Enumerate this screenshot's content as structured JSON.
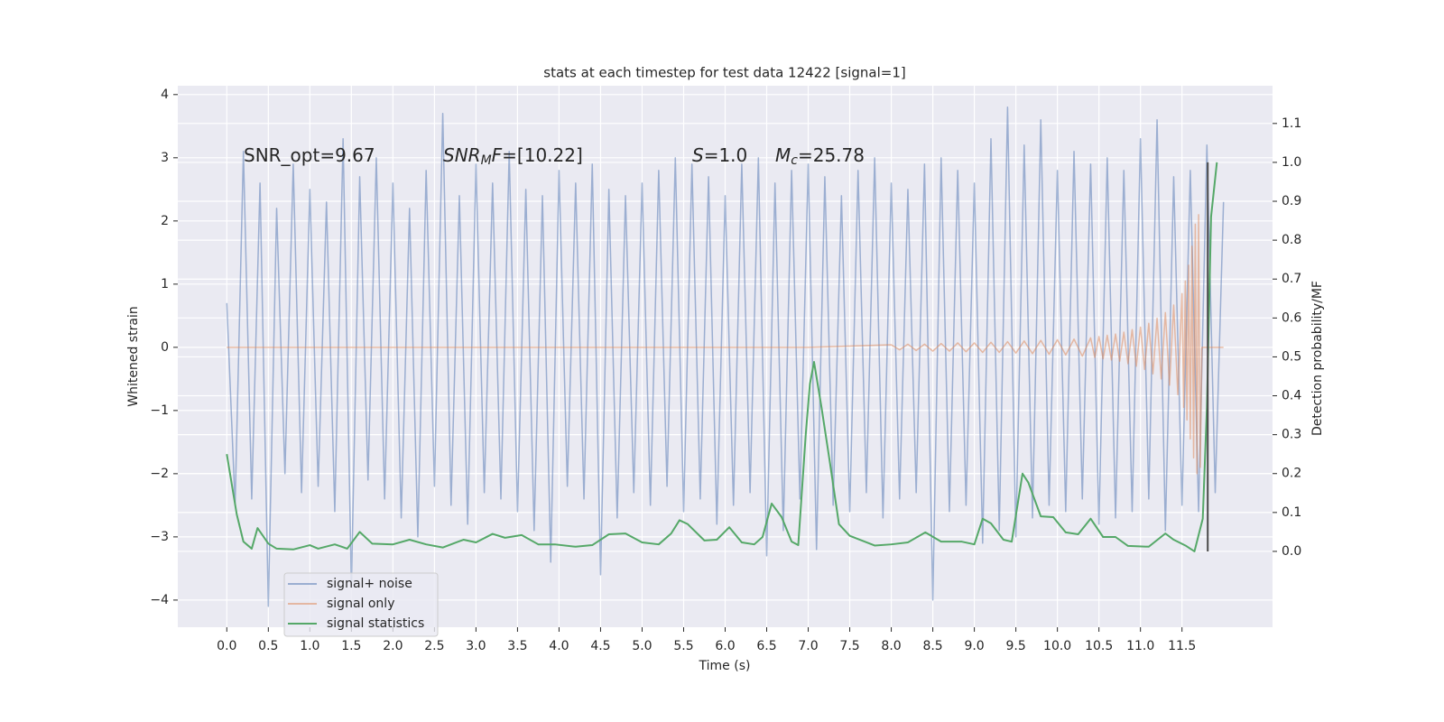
{
  "chart_data": {
    "type": "line",
    "title": "stats at each timestep for test data 12422 [signal=1]",
    "xlabel": "Time (s)",
    "ylabel": "Whitened strain",
    "y2label": "Detection probability/MF",
    "xlim": [
      -0.59,
      12.59
    ],
    "ylim": [
      -4.43,
      4.14
    ],
    "y2lim": [
      -0.195,
      1.197
    ],
    "xticks": [
      {
        "value": 0,
        "label": "0.0"
      },
      0.5,
      {
        "value": 1,
        "label": "1.0"
      },
      1.5,
      {
        "value": 2,
        "label": "2.0"
      },
      2.5,
      {
        "value": 3,
        "label": "3.0"
      },
      3.5,
      {
        "value": 4,
        "label": "4.0"
      },
      4.5,
      {
        "value": 5,
        "label": "5.0"
      },
      5.5,
      {
        "value": 6,
        "label": "6.0"
      },
      6.5,
      {
        "value": 7,
        "label": "7.0"
      },
      7.5,
      {
        "value": 8,
        "label": "8.0"
      },
      8.5,
      {
        "value": 9,
        "label": "9.0"
      },
      9.5,
      {
        "value": 10,
        "label": "10.0"
      },
      10.5,
      {
        "value": 11,
        "label": "11.0"
      },
      11.5
    ],
    "yticks": [
      {
        "value": -4,
        "label": "−4"
      },
      {
        "value": -3,
        "label": "−3"
      },
      {
        "value": -2,
        "label": "−2"
      },
      {
        "value": -1,
        "label": "−1"
      },
      0,
      1,
      2,
      3,
      4
    ],
    "y2ticks": [
      {
        "value": 0,
        "label": "0.0"
      },
      0.1,
      0.2,
      0.3,
      0.4,
      0.5,
      0.6,
      0.7,
      0.8,
      0.9,
      {
        "value": 1,
        "label": "1.0"
      },
      1.1
    ],
    "grid": true,
    "legend": "lower left",
    "annotations": [
      [
        {
          "text": "SNR_opt=9.67",
          "style": "normal"
        }
      ],
      [
        {
          "text": "SNR",
          "style": "italic"
        },
        {
          "text": "M",
          "style": "sub"
        },
        {
          "text": "F",
          "style": "italic"
        },
        {
          "text": "=[10.22]",
          "style": "normal"
        }
      ],
      [
        {
          "text": "S",
          "style": "italic"
        },
        {
          "text": "=1.0",
          "style": "normal"
        }
      ],
      [
        {
          "text": "M",
          "style": "italic"
        },
        {
          "text": "c",
          "style": "sub"
        },
        {
          "text": "=25.78",
          "style": "normal"
        }
      ]
    ],
    "vline": {
      "x": 11.81,
      "ymin": 0,
      "ymax": 1.0,
      "color": "#4a4a4a",
      "axis": "y2"
    },
    "series": [
      {
        "name": "signal+ noise",
        "color": "#4C72B0",
        "opacity": 0.5,
        "x": [
          0,
          0.1,
          0.2,
          0.3,
          0.4,
          0.5,
          0.6,
          0.7,
          0.8,
          0.9,
          1,
          1.1,
          1.2,
          1.3,
          1.4,
          1.5,
          1.6,
          1.7,
          1.8,
          1.9,
          2,
          2.1,
          2.2,
          2.3,
          2.4,
          2.5,
          2.6,
          2.7,
          2.8,
          2.9,
          3,
          3.1,
          3.2,
          3.3,
          3.4,
          3.5,
          3.6,
          3.7,
          3.8,
          3.9,
          4,
          4.1,
          4.2,
          4.3,
          4.4,
          4.5,
          4.6,
          4.7,
          4.8,
          4.9,
          5,
          5.1,
          5.2,
          5.3,
          5.4,
          5.5,
          5.6,
          5.7,
          5.8,
          5.9,
          6,
          6.1,
          6.2,
          6.3,
          6.4,
          6.5,
          6.6,
          6.7,
          6.8,
          6.9,
          7,
          7.1,
          7.2,
          7.3,
          7.4,
          7.5,
          7.6,
          7.7,
          7.8,
          7.9,
          8,
          8.1,
          8.2,
          8.3,
          8.4,
          8.5,
          8.6,
          8.7,
          8.8,
          8.9,
          9,
          9.1,
          9.2,
          9.3,
          9.4,
          9.5,
          9.6,
          9.7,
          9.8,
          9.9,
          10,
          10.1,
          10.2,
          10.3,
          10.4,
          10.5,
          10.6,
          10.7,
          10.8,
          10.9,
          11,
          11.1,
          11.2,
          11.3,
          11.4,
          11.5,
          11.6,
          11.7,
          11.8,
          11.9,
          12
        ],
        "values": [
          0.7,
          -2.5,
          3.1,
          -2.4,
          2.6,
          -4.1,
          2.2,
          -2.0,
          2.9,
          -2.3,
          2.5,
          -2.2,
          2.3,
          -2.6,
          3.3,
          -3.8,
          2.7,
          -2.1,
          3.0,
          -2.4,
          2.6,
          -2.7,
          2.2,
          -3.0,
          2.8,
          -2.2,
          3.7,
          -2.5,
          2.4,
          -2.8,
          2.9,
          -2.3,
          2.6,
          -2.4,
          3.1,
          -2.6,
          2.5,
          -2.9,
          2.4,
          -3.4,
          2.8,
          -2.2,
          2.6,
          -2.4,
          2.9,
          -3.6,
          2.5,
          -2.7,
          2.4,
          -2.3,
          2.6,
          -2.5,
          2.8,
          -2.2,
          3.0,
          -2.6,
          2.9,
          -2.4,
          2.7,
          -2.8,
          2.4,
          -2.5,
          2.9,
          -2.3,
          3.0,
          -3.3,
          2.6,
          -2.9,
          2.8,
          -2.4,
          2.9,
          -3.2,
          2.7,
          -2.5,
          2.4,
          -2.6,
          2.8,
          -2.3,
          3.0,
          -2.7,
          2.6,
          -2.4,
          2.5,
          -2.3,
          2.9,
          -4.0,
          3.0,
          -2.6,
          2.8,
          -2.5,
          2.6,
          -3.1,
          3.3,
          -2.9,
          3.8,
          -3.0,
          3.2,
          -2.7,
          3.6,
          -2.5,
          2.8,
          -2.6,
          3.1,
          -2.4,
          2.9,
          -2.8,
          3.0,
          -2.7,
          2.8,
          -2.6,
          3.3,
          -2.4,
          3.6,
          -2.9,
          2.7,
          -2.5,
          2.8,
          -2.6,
          3.2,
          -2.3,
          2.3
        ]
      },
      {
        "name": "signal only",
        "color": "#DD8452",
        "opacity": 0.5,
        "x": [
          0,
          7.0,
          8.0,
          8.1,
          8.2,
          8.3,
          8.4,
          8.5,
          8.6,
          8.7,
          8.8,
          8.9,
          9.0,
          9.1,
          9.2,
          9.3,
          9.4,
          9.5,
          9.6,
          9.7,
          9.8,
          9.9,
          10.0,
          10.1,
          10.2,
          10.3,
          10.4,
          10.45,
          10.5,
          10.55,
          10.6,
          10.65,
          10.7,
          10.75,
          10.8,
          10.85,
          10.9,
          10.95,
          11.0,
          11.05,
          11.1,
          11.15,
          11.2,
          11.25,
          11.3,
          11.35,
          11.4,
          11.45,
          11.5,
          11.52,
          11.54,
          11.56,
          11.58,
          11.6,
          11.62,
          11.64,
          11.66,
          11.68,
          11.7,
          11.72,
          11.74,
          12.0
        ],
        "values": [
          0,
          0,
          0.04,
          -0.04,
          0.05,
          -0.05,
          0.05,
          -0.06,
          0.06,
          -0.06,
          0.07,
          -0.07,
          0.07,
          -0.08,
          0.08,
          -0.08,
          0.09,
          -0.09,
          0.1,
          -0.1,
          0.11,
          -0.11,
          0.12,
          -0.12,
          0.13,
          -0.14,
          0.15,
          -0.16,
          0.17,
          -0.18,
          0.19,
          -0.2,
          0.21,
          -0.22,
          0.24,
          -0.26,
          0.28,
          -0.3,
          0.32,
          -0.35,
          0.38,
          -0.42,
          0.46,
          -0.5,
          0.55,
          -0.6,
          0.67,
          -0.75,
          0.85,
          -0.95,
          1.05,
          -1.15,
          1.3,
          -1.45,
          1.6,
          -1.75,
          1.95,
          -2.0,
          2.1,
          -1.9,
          0,
          0
        ]
      },
      {
        "name": "signal statistics",
        "color": "#55A868",
        "opacity": 1,
        "axis": "y2",
        "x": [
          0,
          0.12,
          0.2,
          0.3,
          0.37,
          0.5,
          0.6,
          0.8,
          1.0,
          1.1,
          1.3,
          1.45,
          1.6,
          1.75,
          2.0,
          2.2,
          2.4,
          2.6,
          2.85,
          3.0,
          3.2,
          3.35,
          3.55,
          3.75,
          3.95,
          4.2,
          4.4,
          4.6,
          4.8,
          5.0,
          5.2,
          5.35,
          5.45,
          5.55,
          5.75,
          5.9,
          6.05,
          6.2,
          6.35,
          6.45,
          6.56,
          6.68,
          6.8,
          6.88,
          6.97,
          7.02,
          7.07,
          7.16,
          7.26,
          7.37,
          7.5,
          7.8,
          8.0,
          8.2,
          8.41,
          8.6,
          8.85,
          9.0,
          9.1,
          9.2,
          9.35,
          9.45,
          9.58,
          9.65,
          9.8,
          9.95,
          10.1,
          10.25,
          10.4,
          10.55,
          10.7,
          10.85,
          11.1,
          11.3,
          11.4,
          11.55,
          11.65,
          11.75,
          11.8,
          11.85,
          11.92
        ],
        "values": [
          0.25,
          0.095,
          0.025,
          0.007,
          0.06,
          0.02,
          0.007,
          0.005,
          0.016,
          0.007,
          0.018,
          0.007,
          0.05,
          0.02,
          0.018,
          0.03,
          0.018,
          0.01,
          0.03,
          0.023,
          0.045,
          0.035,
          0.042,
          0.018,
          0.018,
          0.012,
          0.016,
          0.044,
          0.046,
          0.023,
          0.018,
          0.046,
          0.08,
          0.07,
          0.028,
          0.03,
          0.062,
          0.023,
          0.018,
          0.037,
          0.123,
          0.088,
          0.025,
          0.016,
          0.3,
          0.43,
          0.487,
          0.37,
          0.23,
          0.07,
          0.04,
          0.015,
          0.018,
          0.023,
          0.049,
          0.025,
          0.025,
          0.018,
          0.084,
          0.072,
          0.03,
          0.025,
          0.2,
          0.177,
          0.09,
          0.088,
          0.049,
          0.044,
          0.084,
          0.037,
          0.037,
          0.014,
          0.012,
          0.046,
          0.03,
          0.014,
          0.0,
          0.084,
          0.37,
          0.86,
          1.0
        ]
      }
    ]
  }
}
